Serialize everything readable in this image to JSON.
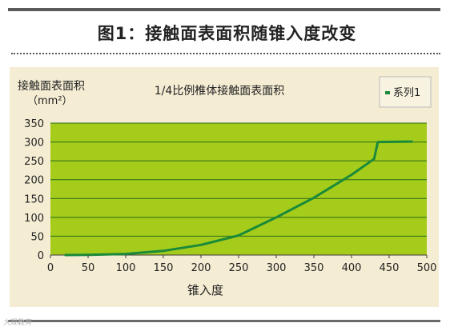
{
  "figure": {
    "title": "图1：接触面表面积随锥入度改变"
  },
  "watermark": "大观教育",
  "chart_data": {
    "type": "line",
    "title": "1/4比例椎体接触面表面积",
    "ylabel_line1": "接触面表面积",
    "ylabel_line2": "（mm²）",
    "xlabel": "锥入度",
    "legend": "系列1",
    "legend_position": "top-right",
    "grid": true,
    "xlim": [
      0,
      500
    ],
    "ylim": [
      0,
      350
    ],
    "x_ticks": [
      0,
      50,
      100,
      150,
      200,
      250,
      300,
      350,
      400,
      450,
      500
    ],
    "y_ticks": [
      0,
      50,
      100,
      150,
      200,
      250,
      300,
      350
    ],
    "series": [
      {
        "name": "系列1",
        "color": "#1a8a3a",
        "x": [
          20,
          50,
          100,
          150,
          200,
          250,
          300,
          350,
          400,
          430,
          435,
          480
        ],
        "y": [
          0,
          0.5,
          3,
          11,
          27,
          52,
          100,
          152,
          213,
          255,
          300,
          301
        ]
      }
    ],
    "colors": {
      "plot_bg": "#a5cc1a",
      "grid": "#2a6b1a",
      "panel_bg": "#f4ecd3",
      "line": "#1a8a3a"
    }
  }
}
